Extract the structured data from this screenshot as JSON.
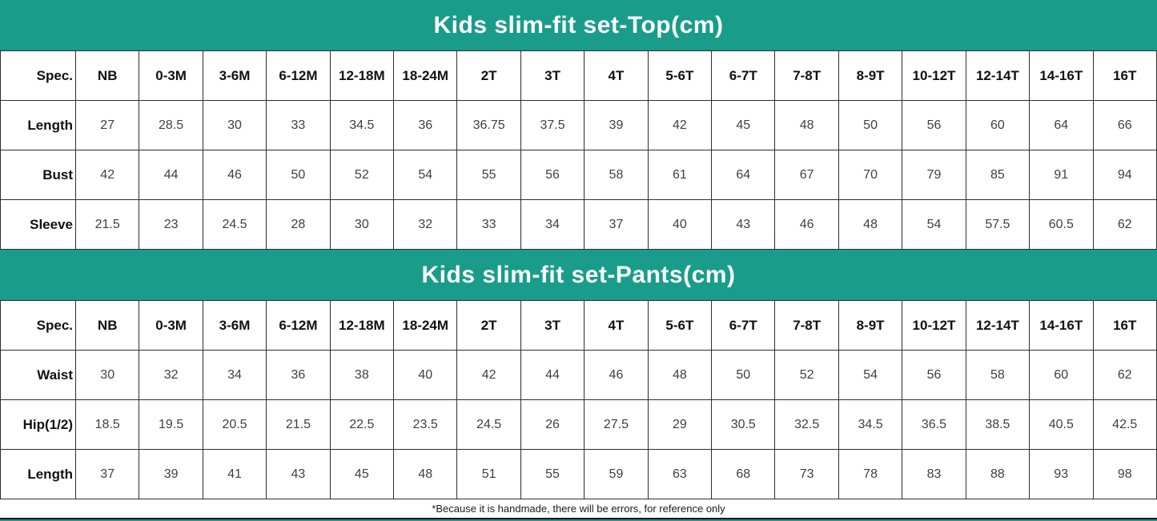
{
  "theme": {
    "teal": "#1a9c8b",
    "border": "#2e2e2e",
    "header_text": "#111111",
    "value_text": "#404040",
    "title_text": "#ffffff"
  },
  "footnote": "*Because it is handmade, there will be errors, for reference only",
  "chart_data": [
    {
      "type": "table",
      "title": "Kids slim-fit set-Top(cm)",
      "columns": [
        "Spec.",
        "NB",
        "0-3M",
        "3-6M",
        "6-12M",
        "12-18M",
        "18-24M",
        "2T",
        "3T",
        "4T",
        "5-6T",
        "6-7T",
        "7-8T",
        "8-9T",
        "10-12T",
        "12-14T",
        "14-16T",
        "16T"
      ],
      "rows": [
        {
          "label": "Length",
          "values": [
            27,
            28.5,
            30,
            33,
            34.5,
            36,
            36.75,
            37.5,
            39,
            42,
            45,
            48,
            50,
            56,
            60,
            64,
            66
          ]
        },
        {
          "label": "Bust",
          "values": [
            42,
            44,
            46,
            50,
            52,
            54,
            55,
            56,
            58,
            61,
            64,
            67,
            70,
            79,
            85,
            91,
            94
          ]
        },
        {
          "label": "Sleeve",
          "values": [
            21.5,
            23,
            24.5,
            28,
            30,
            32,
            33,
            34,
            37,
            40,
            43,
            46,
            48,
            54,
            57.5,
            60.5,
            62
          ]
        }
      ]
    },
    {
      "type": "table",
      "title": "Kids slim-fit set-Pants(cm)",
      "columns": [
        "Spec.",
        "NB",
        "0-3M",
        "3-6M",
        "6-12M",
        "12-18M",
        "18-24M",
        "2T",
        "3T",
        "4T",
        "5-6T",
        "6-7T",
        "7-8T",
        "8-9T",
        "10-12T",
        "12-14T",
        "14-16T",
        "16T"
      ],
      "rows": [
        {
          "label": "Waist",
          "values": [
            30,
            32,
            34,
            36,
            38,
            40,
            42,
            44,
            46,
            48,
            50,
            52,
            54,
            56,
            58,
            60,
            62
          ]
        },
        {
          "label": "Hip(1/2)",
          "values": [
            18.5,
            19.5,
            20.5,
            21.5,
            22.5,
            23.5,
            24.5,
            26,
            27.5,
            29,
            30.5,
            32.5,
            34.5,
            36.5,
            38.5,
            40.5,
            42.5
          ]
        },
        {
          "label": "Length",
          "values": [
            37,
            39,
            41,
            43,
            45,
            48,
            51,
            55,
            59,
            63,
            68,
            73,
            78,
            83,
            88,
            93,
            98
          ]
        }
      ]
    }
  ]
}
